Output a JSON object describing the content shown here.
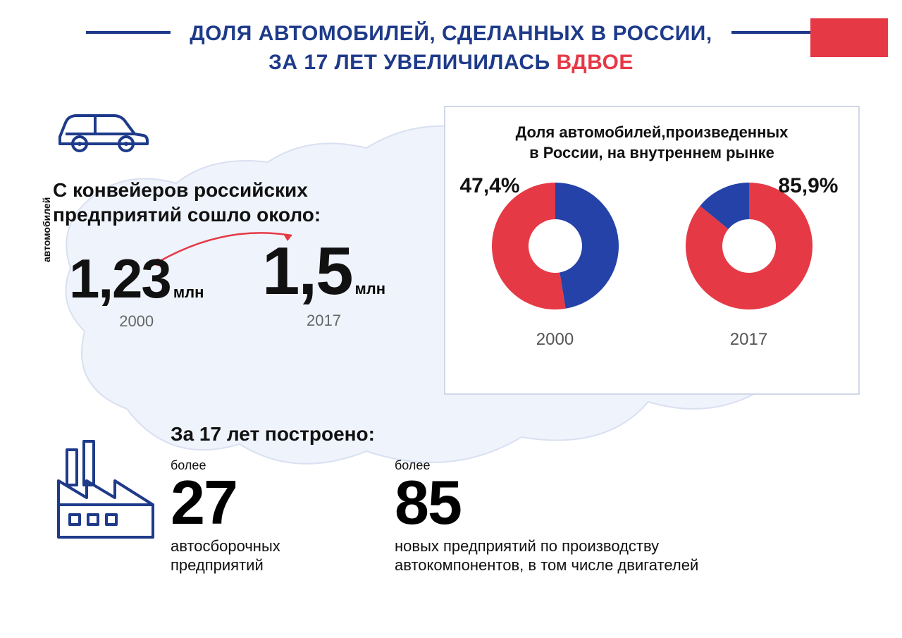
{
  "colors": {
    "blue": "#1e3a8a",
    "red": "#e63946",
    "chart_blue": "#2542a8",
    "chart_red": "#e63946",
    "map_fill": "#eef2fb",
    "map_stroke": "#d5ddf0",
    "panel_border": "#d0d8e8",
    "text": "#111111",
    "muted": "#666666"
  },
  "title": {
    "line1_pre": "ДОЛЯ АВТОМОБИЛЕЙ, СДЕЛАННЫХ В РОССИИ,",
    "line2_pre": "ЗА 17 ЛЕТ УВЕЛИЧИЛАСЬ ",
    "emph": "ВДВОЕ"
  },
  "left": {
    "heading": "С конвейеров российских\nпредприятий сошло около:",
    "y_axis_label": "автомобилей",
    "points": [
      {
        "value": "1,23",
        "unit": "млн",
        "year": "2000"
      },
      {
        "value": "1,5",
        "unit": "млн",
        "year": "2017"
      }
    ]
  },
  "donut": {
    "title": "Доля автомобилей,произведенных\nв России, на внутреннем рынке",
    "inner_radius": 38,
    "outer_radius": 90,
    "series": [
      {
        "year": "2000",
        "percent_label": "47,4%",
        "russia_share": 47.4,
        "colors": {
          "russia": "#2542a8",
          "other": "#e63946"
        }
      },
      {
        "year": "2017",
        "percent_label": "85,9%",
        "russia_share": 85.9,
        "colors": {
          "russia": "#e63946",
          "other": "#2542a8"
        }
      }
    ]
  },
  "bottom": {
    "heading": "За 17 лет построено:",
    "stats": [
      {
        "more": "более",
        "num": "27",
        "desc": "автосборочных\nпредприятий"
      },
      {
        "more": "более",
        "num": "85",
        "desc": "новых предприятий по производству\nавтокомпонентов, в том числе двигателей"
      }
    ]
  }
}
